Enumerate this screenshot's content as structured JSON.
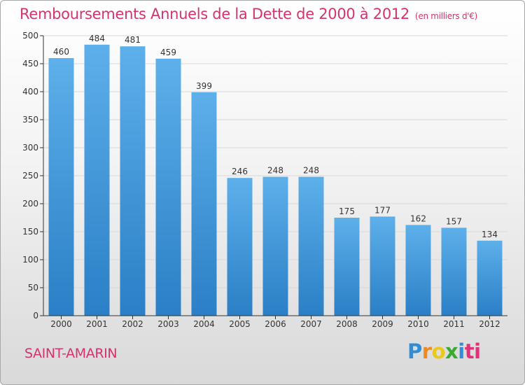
{
  "chart_data": {
    "type": "bar",
    "title": "Remboursements Annuels de la Dette de 2000 à 2012",
    "subtitle": "(en milliers d'€)",
    "categories": [
      "2000",
      "2001",
      "2002",
      "2003",
      "2004",
      "2005",
      "2006",
      "2007",
      "2008",
      "2009",
      "2010",
      "2011",
      "2012"
    ],
    "values": [
      460,
      484,
      481,
      459,
      399,
      246,
      248,
      248,
      175,
      177,
      162,
      157,
      134
    ],
    "ylim": [
      0,
      500
    ],
    "yticks": [
      0,
      50,
      100,
      150,
      200,
      250,
      300,
      350,
      400,
      450,
      500
    ],
    "xlabel": "",
    "ylabel": "",
    "grid": true,
    "bar_color_top": "#5db0ea",
    "bar_color_bottom": "#2a7fc6"
  },
  "location": "SAINT-AMARIN",
  "logo": {
    "letters": [
      "P",
      "r",
      "o",
      "x",
      "i",
      "t",
      "i"
    ],
    "colors": [
      "#2e8fd8",
      "#f08a1e",
      "#e8c91c",
      "#3aaa35",
      "#2e8fd8",
      "#e0327a",
      "#e0327a"
    ]
  },
  "colors": {
    "title": "#d5336f",
    "axis": "#333333",
    "grid": "#d8d8d8"
  }
}
